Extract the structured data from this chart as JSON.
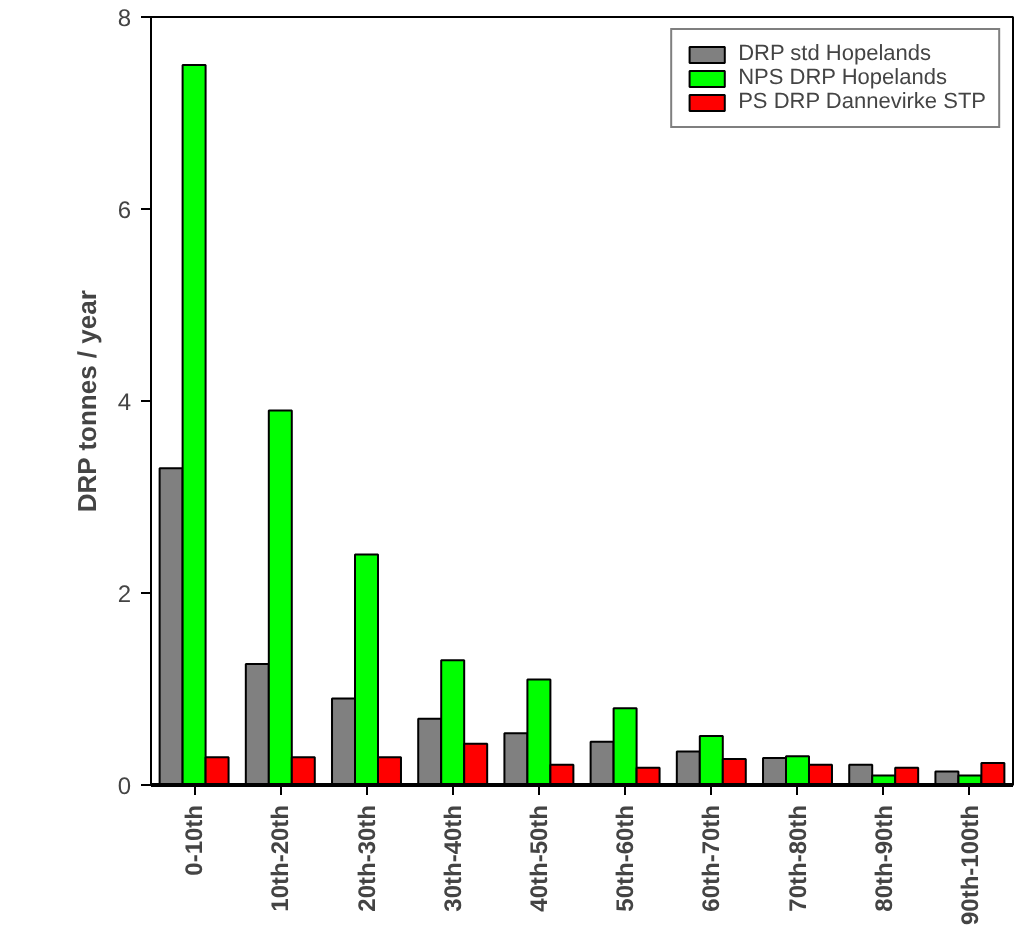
{
  "chart_data": {
    "type": "bar",
    "ylabel": "DRP tonnes / year",
    "categories": [
      "0-10th",
      "10th-20th",
      "20th-30th",
      "30th-40th",
      "40th-50th",
      "50th-60th",
      "60th-70th",
      "70th-80th",
      "80th-90th",
      "90th-100th"
    ],
    "series": [
      {
        "name": "DRP std Hopelands",
        "color": "#808080",
        "values": [
          3.3,
          1.26,
          0.9,
          0.69,
          0.54,
          0.45,
          0.35,
          0.28,
          0.21,
          0.14
        ]
      },
      {
        "name": "NPS DRP Hopelands",
        "color": "#00ff00",
        "values": [
          7.5,
          3.9,
          2.4,
          1.3,
          1.1,
          0.8,
          0.51,
          0.3,
          0.1,
          0.1
        ]
      },
      {
        "name": "PS DRP Dannevirke STP",
        "color": "#ff0000",
        "values": [
          0.29,
          0.29,
          0.29,
          0.43,
          0.21,
          0.18,
          0.27,
          0.21,
          0.18,
          0.23
        ]
      }
    ],
    "ylim": [
      0,
      8
    ],
    "yticks": [
      0,
      2,
      4,
      6,
      8
    ],
    "grid": false,
    "legend": "top right"
  }
}
